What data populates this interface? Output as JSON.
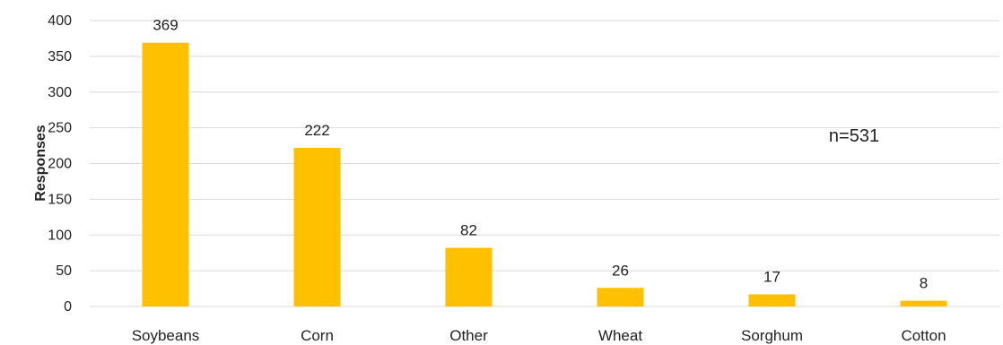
{
  "chart_data": {
    "type": "bar",
    "categories": [
      "Soybeans",
      "Corn",
      "Other",
      "Wheat",
      "Sorghum",
      "Cotton"
    ],
    "values": [
      369,
      222,
      82,
      26,
      17,
      8
    ],
    "title": "",
    "xlabel": "",
    "ylabel": "Responses",
    "ylim": [
      0,
      400
    ],
    "yticks": [
      0,
      50,
      100,
      150,
      200,
      250,
      300,
      350,
      400
    ],
    "annotation": "n=531",
    "grid": true,
    "legend": "none",
    "bar_color": "#FFC000"
  }
}
